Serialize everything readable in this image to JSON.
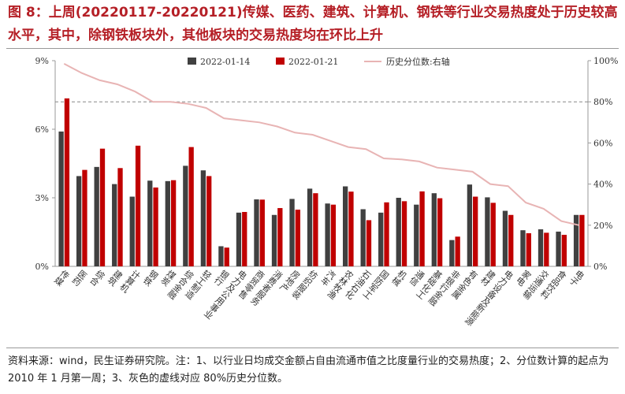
{
  "title": "图 8：上周(20220117-20220121)传媒、医药、建筑、计算机、钢铁等行业交易热度处于历史较高水平，其中，除钢铁板块外，其他板块的交易热度均在环比上升",
  "source": "资料来源：wind，民生证券研究院。注：1、以行业日均成交金额占自由流通市值之比度量行业的交易热度；2、分位数计算的起点为 2010 年 1 月第一周；3、灰色的虚线对应 80%历史分位数。",
  "chart_data": {
    "type": "bar",
    "categories": [
      "传媒",
      "医药",
      "综合",
      "建筑",
      "计算机",
      "钢铁",
      "煤炭",
      "综合金融",
      "轻工制造",
      "银行",
      "电力及公用事业",
      "商贸零售",
      "消费者服务",
      "房地产",
      "纺织服装",
      "汽车",
      "农林牧渔",
      "石油石化",
      "国防军工",
      "机械",
      "通信",
      "基础化工",
      "非银行金融",
      "有色金属",
      "建材",
      "电力设备及新能源",
      "家电",
      "交通运输",
      "食品饮料",
      "电子"
    ],
    "series": [
      {
        "name": "2022-01-14",
        "color": "#404040",
        "axis": "left",
        "values": [
          5.9,
          3.95,
          4.35,
          3.6,
          3.05,
          3.75,
          3.73,
          4.4,
          4.2,
          0.88,
          2.35,
          2.93,
          2.25,
          2.95,
          3.4,
          2.75,
          3.5,
          2.5,
          2.35,
          3.0,
          2.7,
          3.2,
          1.15,
          3.58,
          3.02,
          2.43,
          1.58,
          1.62,
          1.52,
          2.25
        ]
      },
      {
        "name": "2022-01-21",
        "color": "#c00000",
        "axis": "left",
        "values": [
          7.35,
          4.22,
          5.15,
          4.3,
          5.28,
          3.45,
          3.77,
          5.22,
          3.95,
          0.82,
          2.38,
          2.92,
          2.55,
          2.48,
          3.2,
          2.7,
          3.27,
          2.02,
          2.8,
          2.85,
          3.28,
          2.98,
          1.3,
          3.05,
          2.78,
          2.25,
          1.45,
          1.47,
          1.38,
          2.25
        ]
      },
      {
        "name": "历史分位数:右轴",
        "color": "#e8b4b4",
        "axis": "right",
        "kind": "line",
        "values": [
          98.5,
          94,
          90.5,
          88.5,
          85,
          80,
          80,
          79,
          77,
          72,
          71,
          70,
          68,
          65,
          64,
          61,
          58,
          57,
          52.5,
          52,
          51,
          48,
          47,
          46,
          40,
          39,
          31,
          28,
          22,
          20
        ]
      }
    ],
    "y_left": {
      "min": 0,
      "max": 9,
      "ticks": [
        0,
        3,
        6,
        9
      ],
      "tick_labels": [
        "0%",
        "3%",
        "6%",
        "9%"
      ]
    },
    "y_right": {
      "min": 0,
      "max": 100,
      "ticks": [
        0,
        20,
        40,
        60,
        80,
        100
      ],
      "tick_labels": [
        "0%",
        "20%",
        "40%",
        "60%",
        "80%",
        "100%"
      ]
    },
    "reference_line": {
      "axis": "right",
      "value": 80,
      "color": "#888888",
      "style": "dashed"
    },
    "legend": {
      "placement": "top",
      "items": [
        "2022-01-14",
        "2022-01-21",
        "历史分位数:右轴"
      ]
    },
    "grid": false
  }
}
